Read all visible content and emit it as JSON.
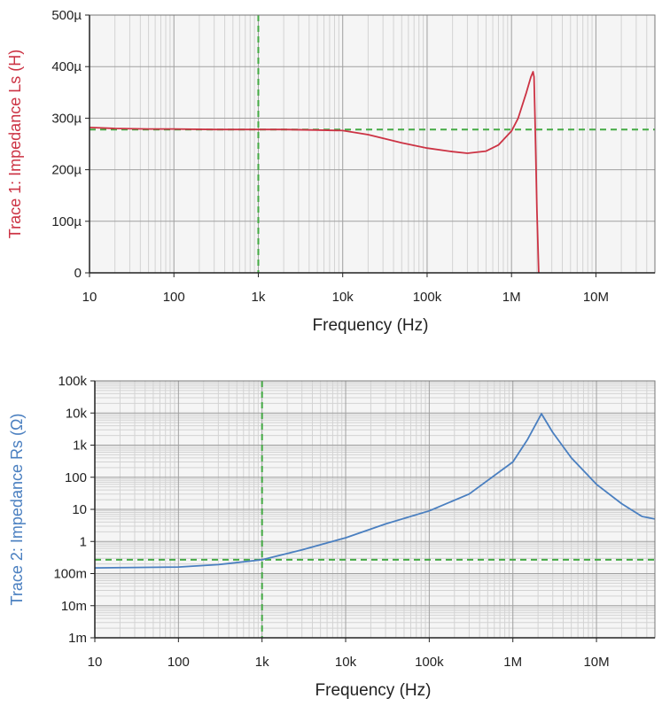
{
  "chart_data": [
    {
      "type": "line",
      "xlabel": "Frequency (Hz)",
      "ylabel": "Trace 1: Impedance Ls (H)",
      "x_scale": "log",
      "xlim": [
        10,
        50000000
      ],
      "ylim": [
        0,
        0.0005
      ],
      "xticks": [
        {
          "value": 10,
          "label": "10"
        },
        {
          "value": 100,
          "label": "100"
        },
        {
          "value": 1000,
          "label": "1k"
        },
        {
          "value": 10000,
          "label": "10k"
        },
        {
          "value": 100000,
          "label": "100k"
        },
        {
          "value": 1000000,
          "label": "1M"
        },
        {
          "value": 10000000,
          "label": "10M"
        }
      ],
      "yticks": [
        {
          "value": 0,
          "label": "0"
        },
        {
          "value": 0.0001,
          "label": "100µ"
        },
        {
          "value": 0.0002,
          "label": "200µ"
        },
        {
          "value": 0.0003,
          "label": "300µ"
        },
        {
          "value": 0.0004,
          "label": "400µ"
        },
        {
          "value": 0.0005,
          "label": "500µ"
        }
      ],
      "grid": true,
      "series": [
        {
          "color": "#cc3344",
          "x": [
            10,
            20,
            50,
            100,
            300,
            1000,
            2000,
            5000,
            10000,
            20000,
            50000,
            100000,
            200000,
            300000,
            500000,
            700000,
            1000000,
            1200000,
            1500000,
            1700000,
            1800000,
            1850000,
            1900000,
            2000000,
            2100000
          ],
          "y": [
            0.000282,
            0.00028,
            0.000279,
            0.000279,
            0.000278,
            0.000278,
            0.000278,
            0.000277,
            0.000276,
            0.000268,
            0.000252,
            0.000242,
            0.000235,
            0.000232,
            0.000236,
            0.000248,
            0.000275,
            0.0003,
            0.00035,
            0.00038,
            0.00039,
            0.00038,
            0.0003,
            0.00012,
            0
          ]
        }
      ],
      "markers": {
        "color": "#44aa44",
        "x": 1000,
        "y": 0.000278
      }
    },
    {
      "type": "line",
      "xlabel": "Frequency (Hz)",
      "ylabel": "Trace 2: Impedance Rs (Ω)",
      "x_scale": "log",
      "y_scale": "log",
      "xlim": [
        10,
        50000000
      ],
      "ylim": [
        0.001,
        100000
      ],
      "xticks": [
        {
          "value": 10,
          "label": "10"
        },
        {
          "value": 100,
          "label": "100"
        },
        {
          "value": 1000,
          "label": "1k"
        },
        {
          "value": 10000,
          "label": "10k"
        },
        {
          "value": 100000,
          "label": "100k"
        },
        {
          "value": 1000000,
          "label": "1M"
        },
        {
          "value": 10000000,
          "label": "10M"
        }
      ],
      "yticks": [
        {
          "value": 0.001,
          "label": "1m"
        },
        {
          "value": 0.01,
          "label": "10m"
        },
        {
          "value": 0.1,
          "label": "100m"
        },
        {
          "value": 1,
          "label": "1"
        },
        {
          "value": 10,
          "label": "10"
        },
        {
          "value": 100,
          "label": "100"
        },
        {
          "value": 1000,
          "label": "1k"
        },
        {
          "value": 10000,
          "label": "10k"
        },
        {
          "value": 100000,
          "label": "100k"
        }
      ],
      "grid": true,
      "series": [
        {
          "color": "#4a7fc0",
          "x": [
            10,
            30,
            100,
            300,
            1000,
            3000,
            10000,
            30000,
            100000,
            300000,
            1000000,
            1500000,
            2000000,
            2200000,
            3000000,
            5000000,
            10000000,
            20000000,
            35000000,
            50000000
          ],
          "y": [
            0.15,
            0.155,
            0.16,
            0.19,
            0.27,
            0.55,
            1.3,
            3.5,
            9,
            30,
            300,
            1500,
            6000,
            9500,
            2500,
            400,
            60,
            15,
            6,
            5
          ]
        }
      ],
      "markers": {
        "color": "#44aa44",
        "x": 1000,
        "y": 0.27
      }
    }
  ]
}
